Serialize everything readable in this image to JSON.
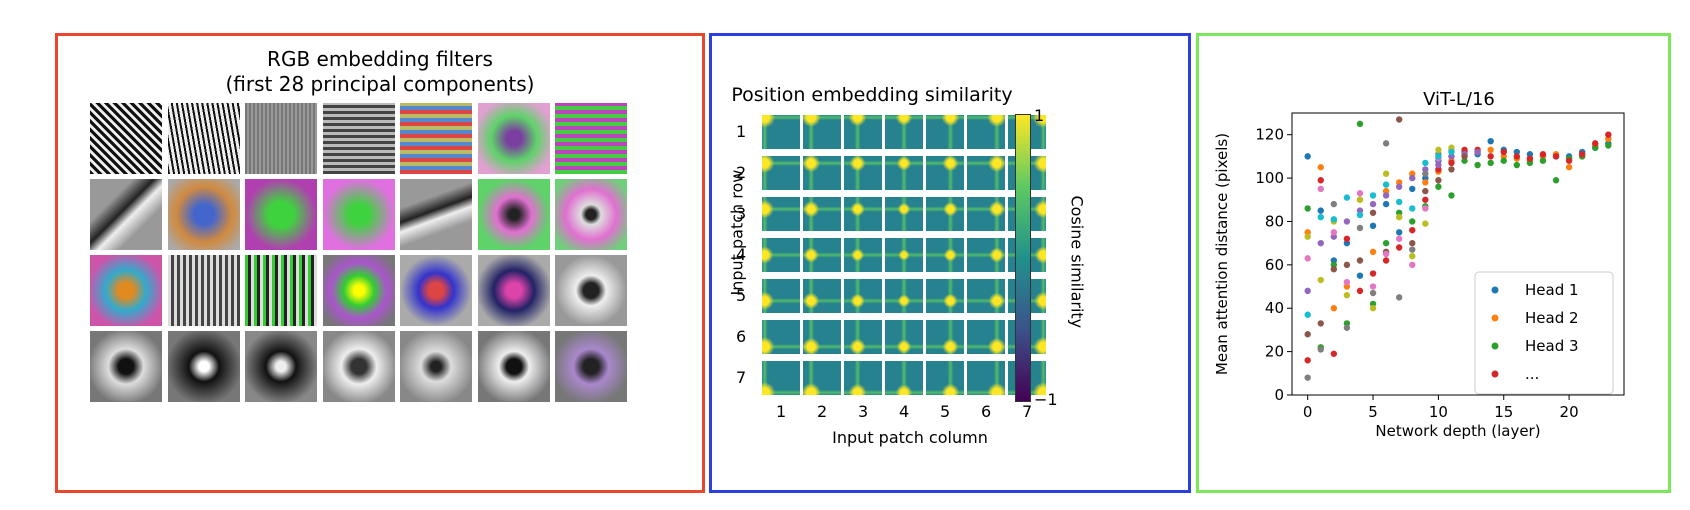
{
  "panel_a": {
    "title_line1": "RGB embedding filters",
    "title_line2": "(first 28 principal components)"
  },
  "panel_b": {
    "title": "Position embedding similarity",
    "row_labels": [
      "1",
      "2",
      "3",
      "4",
      "5",
      "6",
      "7"
    ],
    "col_labels": [
      "1",
      "2",
      "3",
      "4",
      "5",
      "6",
      "7"
    ],
    "ylabel": "Input patch row",
    "xlabel": "Input patch column",
    "colorbar_label": "Cosine similarity",
    "colorbar_max": "1",
    "colorbar_min": "−1"
  },
  "chart_data": {
    "type": "scatter",
    "title": "ViT-L/16",
    "xlabel": "Network depth (layer)",
    "ylabel": "Mean attention distance (pixels)",
    "xlim": [
      -1.2,
      24.2
    ],
    "ylim": [
      0,
      130
    ],
    "xticks": [
      "0",
      "5",
      "10",
      "15",
      "20"
    ],
    "yticks": [
      "0",
      "20",
      "40",
      "60",
      "80",
      "100",
      "120"
    ],
    "legend_position": "lower right",
    "series": [
      {
        "name": "Head 1",
        "color": "#1f77b4",
        "points": [
          [
            0,
            110
          ],
          [
            1,
            85
          ],
          [
            2,
            62
          ],
          [
            3,
            70
          ],
          [
            4,
            55
          ],
          [
            5,
            78
          ],
          [
            6,
            88
          ],
          [
            7,
            75
          ],
          [
            8,
            95
          ],
          [
            9,
            100
          ],
          [
            10,
            108
          ],
          [
            11,
            110
          ],
          [
            12,
            112
          ],
          [
            13,
            111
          ],
          [
            14,
            117
          ],
          [
            15,
            113
          ],
          [
            16,
            112
          ],
          [
            17,
            111
          ],
          [
            18,
            110
          ],
          [
            19,
            110
          ],
          [
            20,
            110
          ],
          [
            21,
            112
          ],
          [
            22,
            114
          ],
          [
            23,
            116
          ]
        ]
      },
      {
        "name": "Head 2",
        "color": "#ff7f0e",
        "points": [
          [
            0,
            75
          ],
          [
            1,
            105
          ],
          [
            2,
            40
          ],
          [
            3,
            50
          ],
          [
            4,
            90
          ],
          [
            5,
            66
          ],
          [
            6,
            94
          ],
          [
            7,
            98
          ],
          [
            8,
            102
          ],
          [
            9,
            98
          ],
          [
            10,
            103
          ],
          [
            11,
            108
          ],
          [
            12,
            110
          ],
          [
            13,
            112
          ],
          [
            14,
            113
          ],
          [
            15,
            110
          ],
          [
            16,
            109
          ],
          [
            17,
            108
          ],
          [
            18,
            110
          ],
          [
            19,
            111
          ],
          [
            20,
            105
          ],
          [
            21,
            110
          ],
          [
            22,
            115
          ],
          [
            23,
            118
          ]
        ]
      },
      {
        "name": "Head 3",
        "color": "#2ca02c",
        "points": [
          [
            0,
            86
          ],
          [
            1,
            22
          ],
          [
            2,
            60
          ],
          [
            3,
            33
          ],
          [
            4,
            125
          ],
          [
            5,
            42
          ],
          [
            6,
            70
          ],
          [
            7,
            84
          ],
          [
            8,
            80
          ],
          [
            9,
            87
          ],
          [
            10,
            96
          ],
          [
            11,
            92
          ],
          [
            12,
            108
          ],
          [
            13,
            106
          ],
          [
            14,
            107
          ],
          [
            15,
            108
          ],
          [
            16,
            106
          ],
          [
            17,
            107
          ],
          [
            18,
            108
          ],
          [
            19,
            99
          ],
          [
            20,
            109
          ],
          [
            21,
            110
          ],
          [
            22,
            114
          ],
          [
            23,
            115
          ]
        ]
      },
      {
        "name": "...",
        "color": "#d62728",
        "points": [
          [
            0,
            16
          ],
          [
            1,
            99
          ],
          [
            2,
            19
          ],
          [
            3,
            72
          ],
          [
            4,
            48
          ],
          [
            5,
            56
          ],
          [
            6,
            62
          ],
          [
            7,
            68
          ],
          [
            8,
            76
          ],
          [
            9,
            90
          ],
          [
            10,
            104
          ],
          [
            11,
            107
          ],
          [
            12,
            113
          ],
          [
            13,
            113
          ],
          [
            14,
            110
          ],
          [
            15,
            112
          ],
          [
            16,
            110
          ],
          [
            17,
            109
          ],
          [
            18,
            111
          ],
          [
            19,
            110
          ],
          [
            20,
            108
          ],
          [
            21,
            111
          ],
          [
            22,
            116
          ],
          [
            23,
            120
          ]
        ]
      },
      {
        "name": "",
        "color": "#9467bd",
        "points": [
          [
            0,
            48
          ],
          [
            1,
            70
          ],
          [
            2,
            73
          ],
          [
            3,
            80
          ],
          [
            4,
            85
          ],
          [
            5,
            88
          ],
          [
            6,
            92
          ],
          [
            7,
            96
          ],
          [
            8,
            100
          ],
          [
            9,
            104
          ],
          [
            10,
            106
          ],
          [
            11,
            110
          ],
          [
            12,
            111
          ],
          [
            13,
            112
          ]
        ]
      },
      {
        "name": "",
        "color": "#8c564b",
        "points": [
          [
            0,
            28
          ],
          [
            1,
            33
          ],
          [
            2,
            58
          ],
          [
            3,
            60
          ],
          [
            4,
            62
          ],
          [
            5,
            84
          ],
          [
            6,
            66
          ],
          [
            7,
            127
          ],
          [
            8,
            70
          ],
          [
            9,
            94
          ],
          [
            10,
            99
          ],
          [
            11,
            104
          ],
          [
            12,
            110
          ]
        ]
      },
      {
        "name": "",
        "color": "#e377c2",
        "points": [
          [
            0,
            63
          ],
          [
            1,
            95
          ],
          [
            2,
            75
          ],
          [
            3,
            52
          ],
          [
            4,
            93
          ],
          [
            5,
            50
          ],
          [
            6,
            65
          ],
          [
            7,
            72
          ],
          [
            8,
            60
          ],
          [
            9,
            86
          ],
          [
            10,
            109
          ],
          [
            11,
            113
          ]
        ]
      },
      {
        "name": "",
        "color": "#7f7f7f",
        "points": [
          [
            0,
            8
          ],
          [
            1,
            21
          ],
          [
            2,
            88
          ],
          [
            3,
            31
          ],
          [
            4,
            77
          ],
          [
            5,
            47
          ],
          [
            6,
            116
          ],
          [
            7,
            45
          ],
          [
            8,
            67
          ],
          [
            9,
            102
          ],
          [
            10,
            111
          ]
        ]
      },
      {
        "name": "",
        "color": "#bcbd22",
        "points": [
          [
            0,
            73
          ],
          [
            1,
            53
          ],
          [
            2,
            80
          ],
          [
            3,
            46
          ],
          [
            4,
            90
          ],
          [
            5,
            40
          ],
          [
            6,
            102
          ],
          [
            7,
            82
          ],
          [
            8,
            64
          ],
          [
            9,
            79
          ],
          [
            10,
            113
          ],
          [
            11,
            114
          ]
        ]
      },
      {
        "name": "",
        "color": "#17becf",
        "points": [
          [
            0,
            37
          ],
          [
            1,
            82
          ],
          [
            2,
            81
          ],
          [
            3,
            91
          ],
          [
            4,
            83
          ],
          [
            5,
            92
          ],
          [
            6,
            97
          ],
          [
            7,
            89
          ],
          [
            8,
            86
          ],
          [
            9,
            107
          ],
          [
            10,
            110
          ],
          [
            11,
            112
          ]
        ]
      }
    ]
  }
}
